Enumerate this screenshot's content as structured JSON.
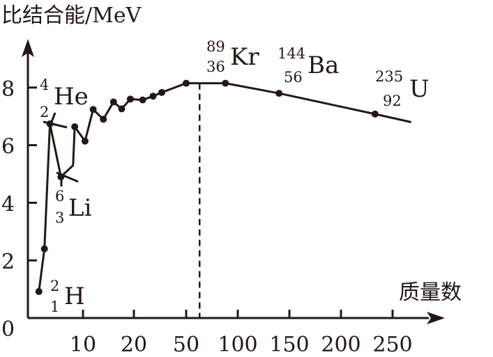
{
  "chart_data": {
    "type": "line",
    "title": "",
    "ylabel": "比结合能/MeV",
    "xlabel": "质量数",
    "ylim": [
      0,
      8.9
    ],
    "grid": false,
    "x_scale": "non-uniform (piecewise)",
    "x_ticks": [
      "10",
      "20",
      "50",
      "100",
      "150",
      "200",
      "250"
    ],
    "y_ticks": [
      "0",
      "2",
      "4",
      "6",
      "8"
    ],
    "color": "#231815",
    "points": [
      {
        "x": 2,
        "y": 0.92
      },
      {
        "x": 3,
        "y": 2.4
      },
      {
        "x": 4,
        "y": 6.74
      },
      {
        "x": 6,
        "y": 4.9
      },
      {
        "x": 8.2,
        "y": 5.3,
        "marker": false
      },
      {
        "x": 8.5,
        "y": 6.64
      },
      {
        "x": 10.4,
        "y": 6.14
      },
      {
        "x": 12,
        "y": 7.24
      },
      {
        "x": 14,
        "y": 6.9
      },
      {
        "x": 16,
        "y": 7.5
      },
      {
        "x": 17.6,
        "y": 7.26
      },
      {
        "x": 19.3,
        "y": 7.6
      },
      {
        "x": 25,
        "y": 7.57
      },
      {
        "x": 31,
        "y": 7.7
      },
      {
        "x": 36,
        "y": 7.83
      },
      {
        "x": 50,
        "y": 8.15
      },
      {
        "x": 88,
        "y": 8.15
      },
      {
        "x": 140,
        "y": 7.8
      },
      {
        "x": 233,
        "y": 7.08
      },
      {
        "x": 268,
        "y": 6.8,
        "marker": false
      }
    ],
    "dashed_line_x": 63,
    "annotations": [
      {
        "name": "H",
        "mass": "2",
        "atomic": "1"
      },
      {
        "name": "He",
        "mass": "4",
        "atomic": "2"
      },
      {
        "name": "Li",
        "mass": "6",
        "atomic": "3"
      },
      {
        "name": "Kr",
        "mass": "89",
        "atomic": "36"
      },
      {
        "name": "Ba",
        "mass": "144",
        "atomic": "56"
      },
      {
        "name": "U",
        "mass": "235",
        "atomic": "92"
      }
    ]
  }
}
